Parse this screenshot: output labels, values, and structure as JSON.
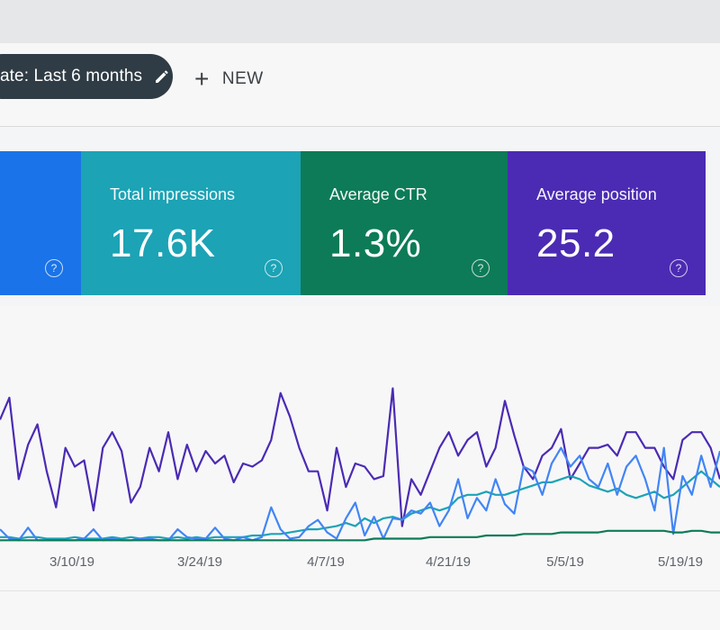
{
  "toolbar": {
    "filter_chip_label": "ate: Last 6 months",
    "edit_icon": "pencil-icon",
    "new_button_label": "NEW",
    "new_icon": "plus-icon"
  },
  "cards": [
    {
      "label": "",
      "value": "",
      "color": "#1a73e8"
    },
    {
      "label": "Total impressions",
      "value": "17.6K",
      "color": "#1ca3b5"
    },
    {
      "label": "Average CTR",
      "value": "1.3%",
      "color": "#0d7b57"
    },
    {
      "label": "Average position",
      "value": "25.2",
      "color": "#4b2bb3"
    }
  ],
  "help_glyph": "?",
  "chart_data": {
    "type": "line",
    "x_ticks": [
      "3/10/19",
      "3/24/19",
      "4/7/19",
      "4/21/19",
      "5/5/19",
      "5/19/19"
    ],
    "ylim": [
      0,
      100
    ],
    "grid": false,
    "series": [
      {
        "color": "#4b2bb3",
        "values": [
          78,
          92,
          40,
          62,
          75,
          45,
          22,
          60,
          48,
          52,
          20,
          60,
          70,
          58,
          25,
          35,
          60,
          45,
          70,
          40,
          62,
          45,
          58,
          50,
          55,
          38,
          50,
          48,
          52,
          65,
          95,
          80,
          60,
          45,
          45,
          20,
          60,
          35,
          50,
          48,
          40,
          42,
          98,
          10,
          40,
          30,
          45,
          60,
          70,
          55,
          65,
          70,
          48,
          60,
          90,
          68,
          48,
          40,
          55,
          60,
          72,
          40,
          50,
          60,
          60,
          62,
          55,
          70,
          70,
          60,
          60,
          48,
          40,
          65,
          70,
          70,
          60,
          40
        ]
      },
      {
        "color": "#1ca3b5",
        "values": [
          3,
          3,
          2,
          3,
          3,
          2,
          2,
          2,
          3,
          2,
          2,
          2,
          3,
          2,
          3,
          2,
          3,
          3,
          2,
          3,
          2,
          3,
          2,
          3,
          3,
          3,
          3,
          4,
          4,
          5,
          5,
          6,
          7,
          8,
          8,
          9,
          10,
          12,
          10,
          15,
          12,
          15,
          16,
          14,
          18,
          20,
          22,
          20,
          22,
          28,
          30,
          30,
          32,
          30,
          30,
          32,
          34,
          36,
          38,
          38,
          40,
          42,
          40,
          36,
          34,
          32,
          34,
          30,
          28,
          30,
          32,
          28,
          30,
          35,
          40,
          45,
          40,
          35
        ]
      },
      {
        "color": "#4285f4",
        "values": [
          8,
          2,
          1,
          9,
          1,
          1,
          1,
          1,
          1,
          2,
          8,
          1,
          2,
          1,
          1,
          2,
          2,
          1,
          1,
          8,
          3,
          2,
          2,
          9,
          2,
          1,
          3,
          1,
          3,
          22,
          8,
          2,
          3,
          10,
          14,
          6,
          2,
          15,
          25,
          4,
          16,
          2,
          15,
          14,
          20,
          18,
          25,
          10,
          20,
          40,
          15,
          28,
          20,
          40,
          24,
          18,
          48,
          45,
          30,
          50,
          60,
          48,
          55,
          40,
          35,
          50,
          30,
          48,
          55,
          40,
          20,
          60,
          5,
          42,
          30,
          55,
          35,
          58
        ]
      },
      {
        "color": "#0d7b57",
        "values": [
          1,
          1,
          1,
          1,
          1,
          1,
          1,
          1,
          1,
          1,
          1,
          1,
          1,
          1,
          1,
          1,
          1,
          1,
          1,
          1,
          1,
          1,
          1,
          1,
          1,
          1,
          1,
          1,
          1,
          1,
          1,
          1,
          1,
          1,
          1,
          1,
          1,
          1,
          1,
          1,
          2,
          2,
          2,
          2,
          2,
          2,
          3,
          3,
          3,
          3,
          3,
          3,
          4,
          4,
          4,
          4,
          5,
          5,
          5,
          5,
          6,
          6,
          6,
          6,
          6,
          7,
          7,
          7,
          7,
          7,
          7,
          7,
          6,
          6,
          7,
          7,
          6,
          6
        ]
      }
    ]
  }
}
